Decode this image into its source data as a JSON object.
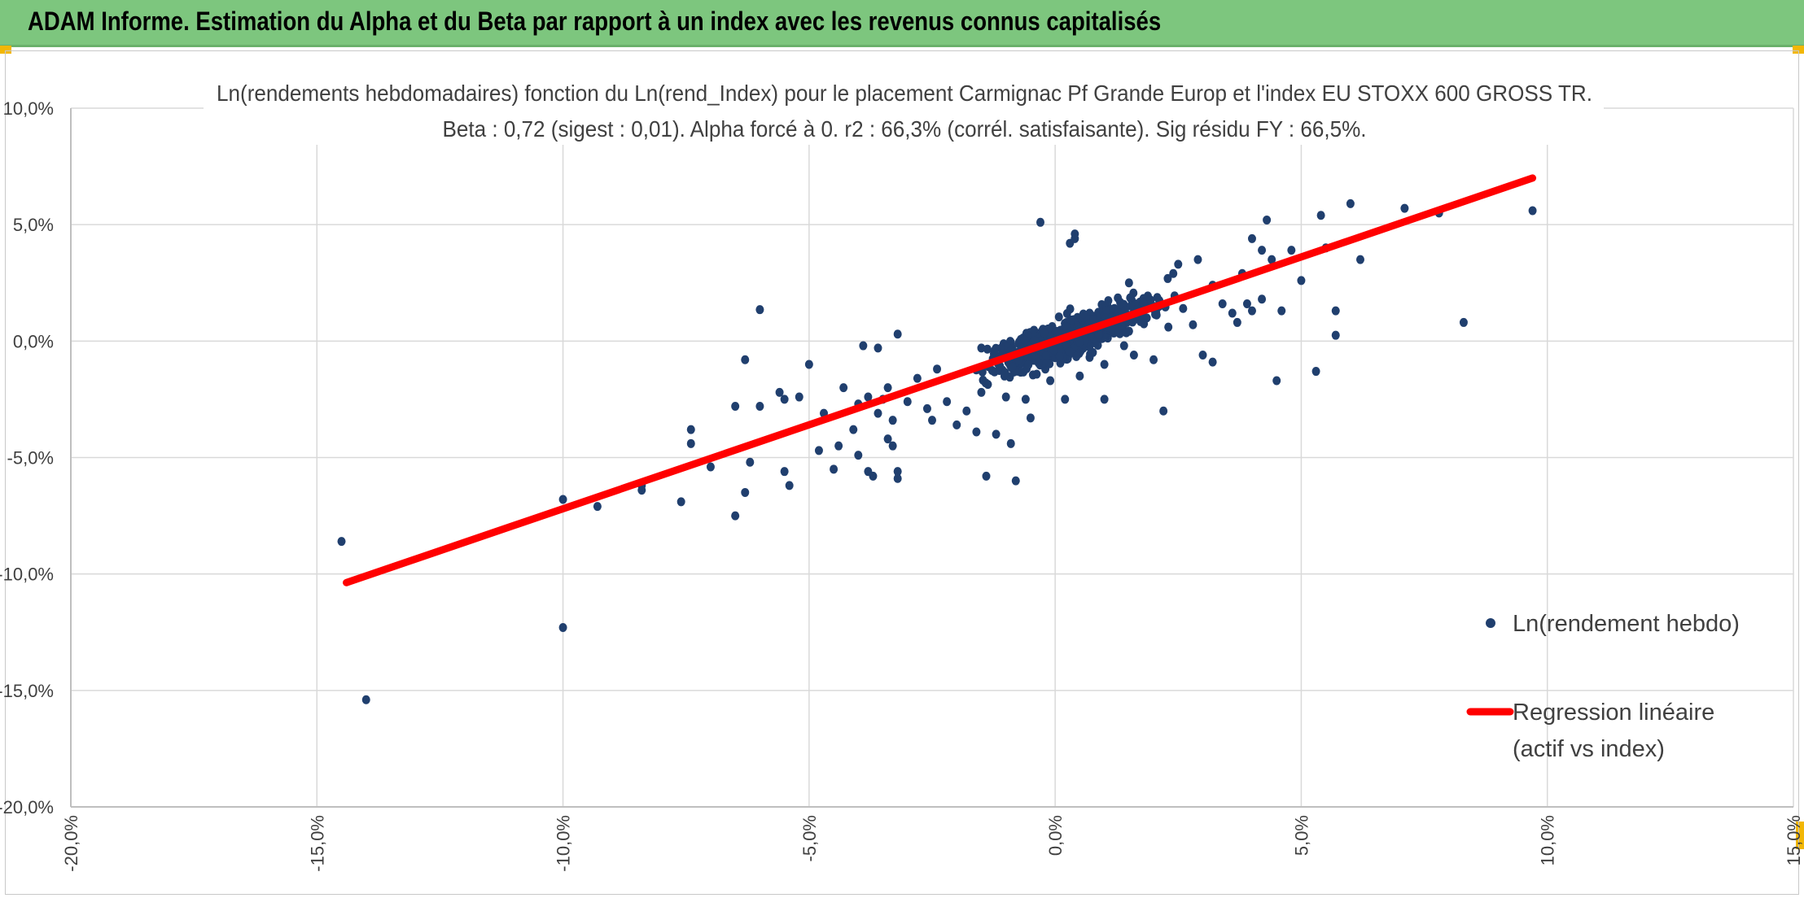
{
  "header": {
    "title": "ADAM Informe. Estimation du Alpha et du Beta par rapport à un index avec les revenus connus capitalisés"
  },
  "colors": {
    "header_bg": "#7dc67e",
    "points": "#203f6e",
    "regression": "#ff0000",
    "grid": "#d9d9d9",
    "accent_corner": "#f2b705"
  },
  "chart_data": {
    "type": "scatter",
    "title": "Ln(rendements hebdomadaires) fonction du Ln(rend_Index) pour le placement Carmignac Pf Grande Europ et l'index EU STOXX 600 GROSS TR.",
    "subtitle": "Beta : 0,72 (sigest : 0,01). Alpha forcé à 0. r2 : 66,3% (corrél. satisfaisante). Sig résidu FY : 66,5%.",
    "xlim": [
      -20,
      15
    ],
    "ylim": [
      -20,
      10
    ],
    "x_ticks": [
      "-20,0%",
      "-15,0%",
      "-10,0%",
      "-5,0%",
      "0,0%",
      "5,0%",
      "10,0%",
      "15,0%"
    ],
    "y_ticks": [
      "10,0%",
      "5,0%",
      "0,0%",
      "-5,0%",
      "-10,0%",
      "-15,0%",
      "-20,0%"
    ],
    "grid": true,
    "legend_position": "right",
    "series": [
      {
        "name": "Ln(rendement hebdo)",
        "type": "scatter",
        "points": [
          [
            -14.5,
            -8.6
          ],
          [
            -14.0,
            -15.4
          ],
          [
            -10.0,
            -12.3
          ],
          [
            -10.0,
            -6.8
          ],
          [
            -9.3,
            -7.1
          ],
          [
            -8.4,
            -6.2
          ],
          [
            -8.4,
            -6.4
          ],
          [
            -7.6,
            -6.9
          ],
          [
            -7.4,
            -4.4
          ],
          [
            -7.4,
            -3.8
          ],
          [
            -7.0,
            -5.4
          ],
          [
            -6.5,
            -2.8
          ],
          [
            -6.5,
            -7.5
          ],
          [
            -6.3,
            -6.5
          ],
          [
            -6.2,
            -5.2
          ],
          [
            -6.0,
            1.35
          ],
          [
            -6.0,
            -2.8
          ],
          [
            -6.3,
            -0.8
          ],
          [
            -5.6,
            -2.2
          ],
          [
            -5.5,
            -5.6
          ],
          [
            -5.4,
            -6.2
          ],
          [
            -5.5,
            -2.5
          ],
          [
            -5.2,
            -2.4
          ],
          [
            -5.0,
            -1.0
          ],
          [
            -4.8,
            -4.7
          ],
          [
            -4.7,
            -3.1
          ],
          [
            -4.5,
            -5.5
          ],
          [
            -4.4,
            -4.5
          ],
          [
            -4.3,
            -2.0
          ],
          [
            -4.1,
            -3.8
          ],
          [
            -4.0,
            -4.9
          ],
          [
            -4.0,
            -2.7
          ],
          [
            -3.9,
            -0.2
          ],
          [
            -3.8,
            -5.6
          ],
          [
            -3.7,
            -5.8
          ],
          [
            -3.6,
            -0.3
          ],
          [
            -3.5,
            -2.5
          ],
          [
            -3.4,
            -4.2
          ],
          [
            -3.3,
            -3.4
          ],
          [
            -3.3,
            -4.5
          ],
          [
            -3.2,
            -5.6
          ],
          [
            -3.2,
            -5.9
          ],
          [
            -3.0,
            -2.6
          ],
          [
            -3.4,
            -2.0
          ],
          [
            -3.6,
            -3.1
          ],
          [
            -3.8,
            -2.4
          ],
          [
            -3.2,
            0.3
          ],
          [
            -2.8,
            -1.6
          ],
          [
            -2.6,
            -2.9
          ],
          [
            -2.5,
            -3.4
          ],
          [
            -2.4,
            -1.2
          ],
          [
            -2.2,
            -2.6
          ],
          [
            -2.0,
            -3.6
          ],
          [
            -1.8,
            -3.0
          ],
          [
            -1.6,
            -3.9
          ],
          [
            -1.5,
            -2.2
          ],
          [
            -1.4,
            -5.8
          ],
          [
            -1.2,
            -0.8
          ],
          [
            -1.0,
            -2.4
          ],
          [
            -0.9,
            -4.4
          ],
          [
            -0.8,
            -6.0
          ],
          [
            -0.6,
            -2.5
          ],
          [
            -0.5,
            -3.3
          ],
          [
            -1.2,
            -4.0
          ],
          [
            -1.5,
            -0.3
          ],
          [
            -0.7,
            -0.4
          ],
          [
            -0.3,
            5.1
          ],
          [
            -0.2,
            -1.2
          ],
          [
            -0.1,
            -1.7
          ],
          [
            0.2,
            -2.5
          ],
          [
            0.4,
            4.6
          ],
          [
            0.3,
            4.2
          ],
          [
            0.4,
            4.4
          ],
          [
            0.5,
            -1.5
          ],
          [
            0.7,
            -0.7
          ],
          [
            1.0,
            -2.5
          ],
          [
            1.0,
            -1.0
          ],
          [
            1.4,
            -0.2
          ],
          [
            1.6,
            -0.6
          ],
          [
            2.0,
            -0.8
          ],
          [
            2.2,
            -3.0
          ],
          [
            2.3,
            0.6
          ],
          [
            2.6,
            1.4
          ],
          [
            2.8,
            0.7
          ],
          [
            3.0,
            -0.6
          ],
          [
            3.2,
            -0.9
          ],
          [
            3.4,
            1.6
          ],
          [
            3.7,
            0.8
          ],
          [
            3.8,
            2.9
          ],
          [
            4.0,
            1.3
          ],
          [
            4.2,
            1.8
          ],
          [
            4.0,
            4.4
          ],
          [
            4.3,
            5.2
          ],
          [
            4.2,
            3.9
          ],
          [
            4.4,
            3.5
          ],
          [
            4.5,
            -1.7
          ],
          [
            4.6,
            1.3
          ],
          [
            4.8,
            3.9
          ],
          [
            5.0,
            2.6
          ],
          [
            5.3,
            -1.3
          ],
          [
            5.4,
            5.4
          ],
          [
            5.5,
            4.0
          ],
          [
            5.7,
            1.3
          ],
          [
            5.7,
            0.25
          ],
          [
            6.2,
            3.5
          ],
          [
            6.0,
            5.9
          ],
          [
            7.1,
            5.7
          ],
          [
            7.8,
            5.5
          ],
          [
            8.3,
            0.8
          ],
          [
            9.7,
            5.6
          ],
          [
            1.5,
            2.5
          ],
          [
            2.5,
            3.3
          ],
          [
            2.9,
            3.5
          ],
          [
            3.2,
            2.4
          ],
          [
            3.6,
            1.2
          ],
          [
            3.9,
            1.6
          ],
          [
            2.4,
            2.9
          ]
        ]
      },
      {
        "name": "Regression linéaire\n(actif vs index)",
        "type": "line",
        "points": [
          [
            -14.4,
            -10.37
          ],
          [
            9.7,
            7.0
          ]
        ]
      }
    ]
  }
}
